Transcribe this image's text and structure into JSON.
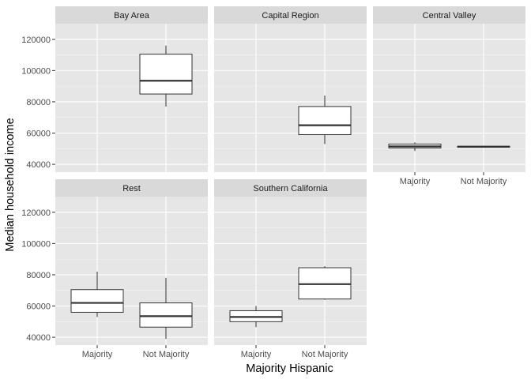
{
  "chart_data": {
    "type": "boxplot",
    "xlabel": "Majority Hispanic",
    "ylabel": "Median household income",
    "categories": [
      "Majority",
      "Not Majority"
    ],
    "ylim": [
      35000,
      130000
    ],
    "yticks": [
      40000,
      60000,
      80000,
      100000,
      120000
    ],
    "ytick_labels": [
      "40000",
      "60000",
      "80000",
      "100000",
      "120000"
    ],
    "grid": true,
    "layout": "facet grid, 2 rows x 3 columns",
    "colors": {
      "panel": "#e6e6e6",
      "strip": "#d9d9d9",
      "grid_major": "#ffffff",
      "box_fill": "#ffffff",
      "box_line": "#333333"
    },
    "panels": [
      {
        "title": "Bay Area",
        "boxes": [
          {
            "category": "Not Majority",
            "min": 77000,
            "q1": 85000,
            "median": 93500,
            "q3": 110500,
            "max": 116000
          }
        ]
      },
      {
        "title": "Capital Region",
        "boxes": [
          {
            "category": "Not Majority",
            "min": 53000,
            "q1": 59000,
            "median": 65000,
            "q3": 77000,
            "max": 84000
          }
        ]
      },
      {
        "title": "Central Valley",
        "boxes": [
          {
            "category": "Majority",
            "min": 48500,
            "q1": 50500,
            "median": 51500,
            "q3": 53000,
            "max": 54000
          },
          {
            "category": "Not Majority",
            "min": 51000,
            "q1": 51000,
            "median": 51300,
            "q3": 51500,
            "max": 51500
          }
        ]
      },
      {
        "title": "Rest",
        "boxes": [
          {
            "category": "Majority",
            "min": 53000,
            "q1": 56000,
            "median": 62000,
            "q3": 70500,
            "max": 82000
          },
          {
            "category": "Not Majority",
            "min": 39000,
            "q1": 46500,
            "median": 53500,
            "q3": 62000,
            "max": 78000
          }
        ]
      },
      {
        "title": "Southern California",
        "boxes": [
          {
            "category": "Majority",
            "min": 46500,
            "q1": 50000,
            "median": 53000,
            "q3": 57000,
            "max": 60000
          },
          {
            "category": "Not Majority",
            "min": 64000,
            "q1": 64500,
            "median": 74000,
            "q3": 84500,
            "max": 85500
          }
        ]
      }
    ]
  }
}
